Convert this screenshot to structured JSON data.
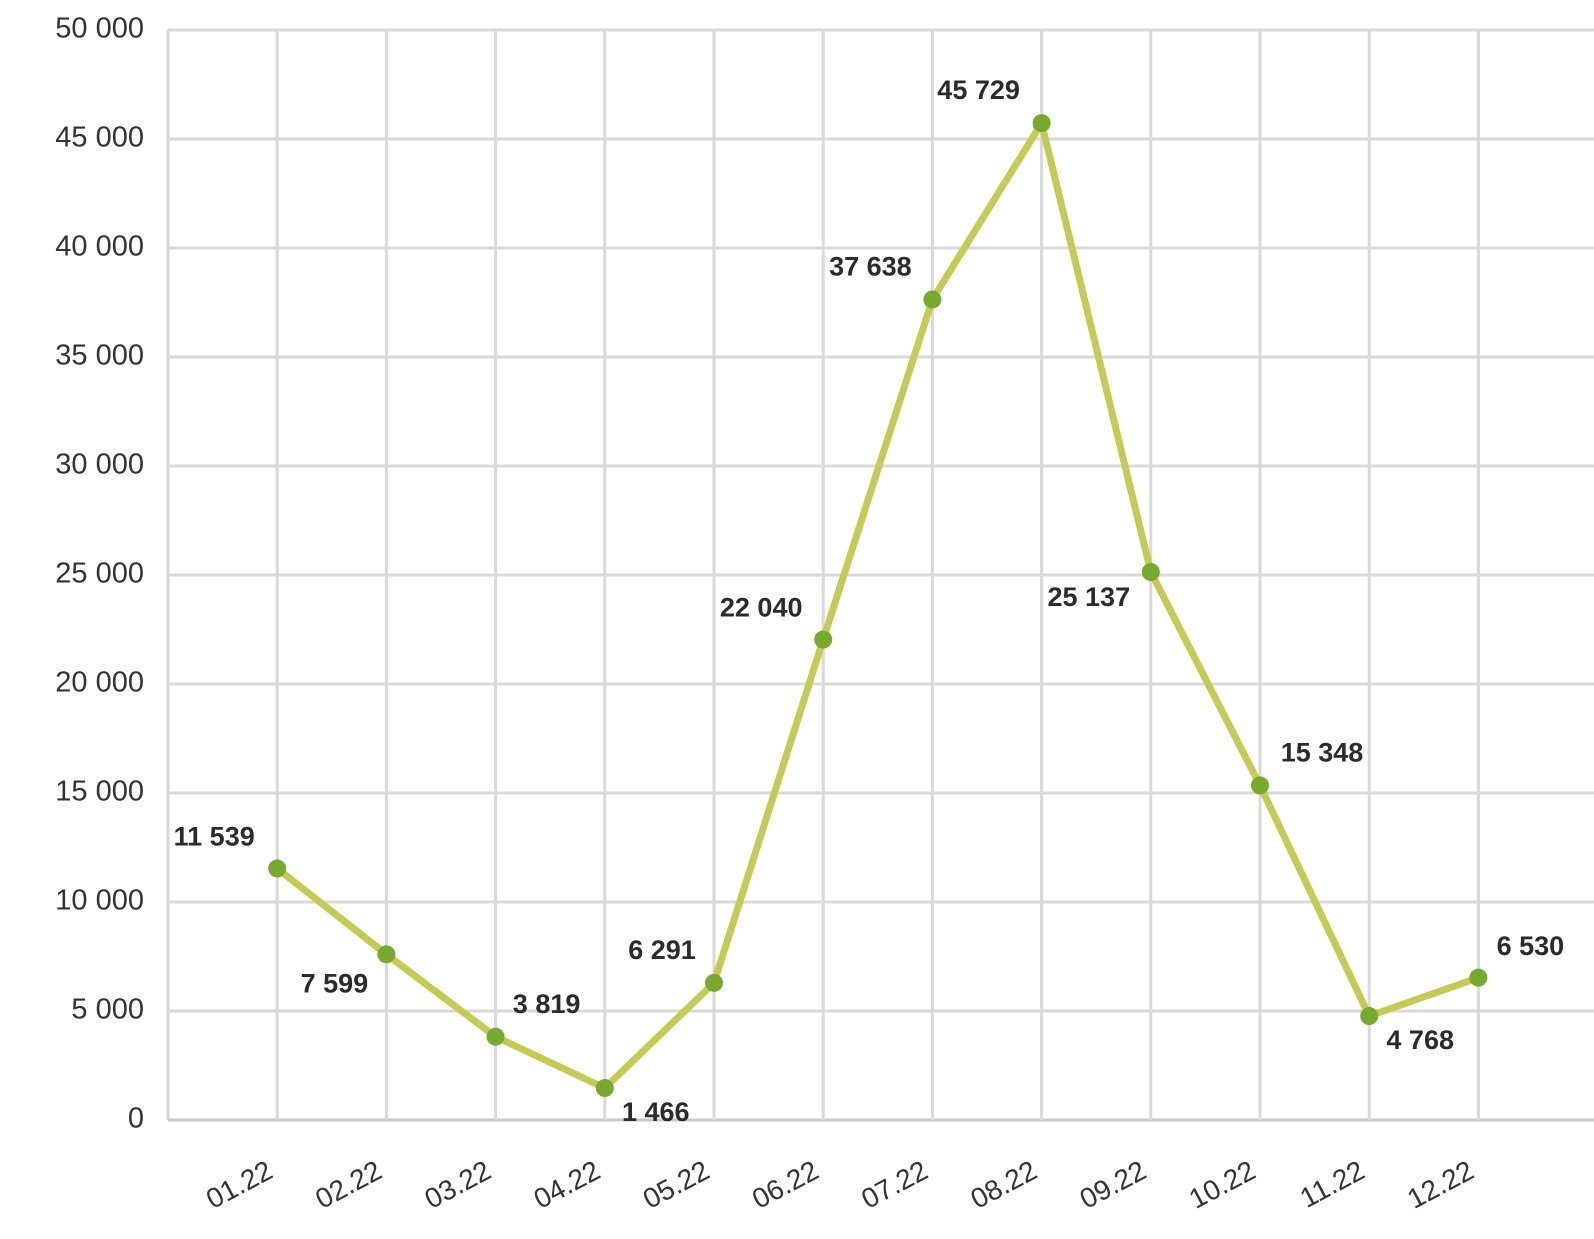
{
  "chart_data": {
    "type": "line",
    "categories": [
      "01.22",
      "02.22",
      "03.22",
      "04.22",
      "05.22",
      "06.22",
      "07.22",
      "08.22",
      "09.22",
      "10.22",
      "11.22",
      "12.22"
    ],
    "series": [
      {
        "color": "#c3cb55",
        "marker_color": "#76a92d",
        "values": [
          11539,
          7599,
          3819,
          1466,
          6291,
          22040,
          37638,
          45729,
          25137,
          15348,
          4768,
          6530
        ],
        "value_labels": [
          "11 539",
          "7 599",
          "3 819",
          "1 466",
          "6 291",
          "22 040",
          "37 638",
          "45 729",
          "25 137",
          "15 348",
          "4 768",
          "6 530"
        ]
      }
    ],
    "ylim": [
      0,
      50000
    ],
    "yticks": [
      {
        "value": 0,
        "label": "0"
      },
      {
        "value": 5000,
        "label": "5 000"
      },
      {
        "value": 10000,
        "label": "10 000"
      },
      {
        "value": 15000,
        "label": "15 000"
      },
      {
        "value": 20000,
        "label": "20 000"
      },
      {
        "value": 25000,
        "label": "25 000"
      },
      {
        "value": 30000,
        "label": "30 000"
      },
      {
        "value": 35000,
        "label": "35 000"
      },
      {
        "value": 40000,
        "label": "40 000"
      },
      {
        "value": 45000,
        "label": "45 000"
      },
      {
        "value": 50000,
        "label": "50 000"
      }
    ],
    "grid": true
  }
}
